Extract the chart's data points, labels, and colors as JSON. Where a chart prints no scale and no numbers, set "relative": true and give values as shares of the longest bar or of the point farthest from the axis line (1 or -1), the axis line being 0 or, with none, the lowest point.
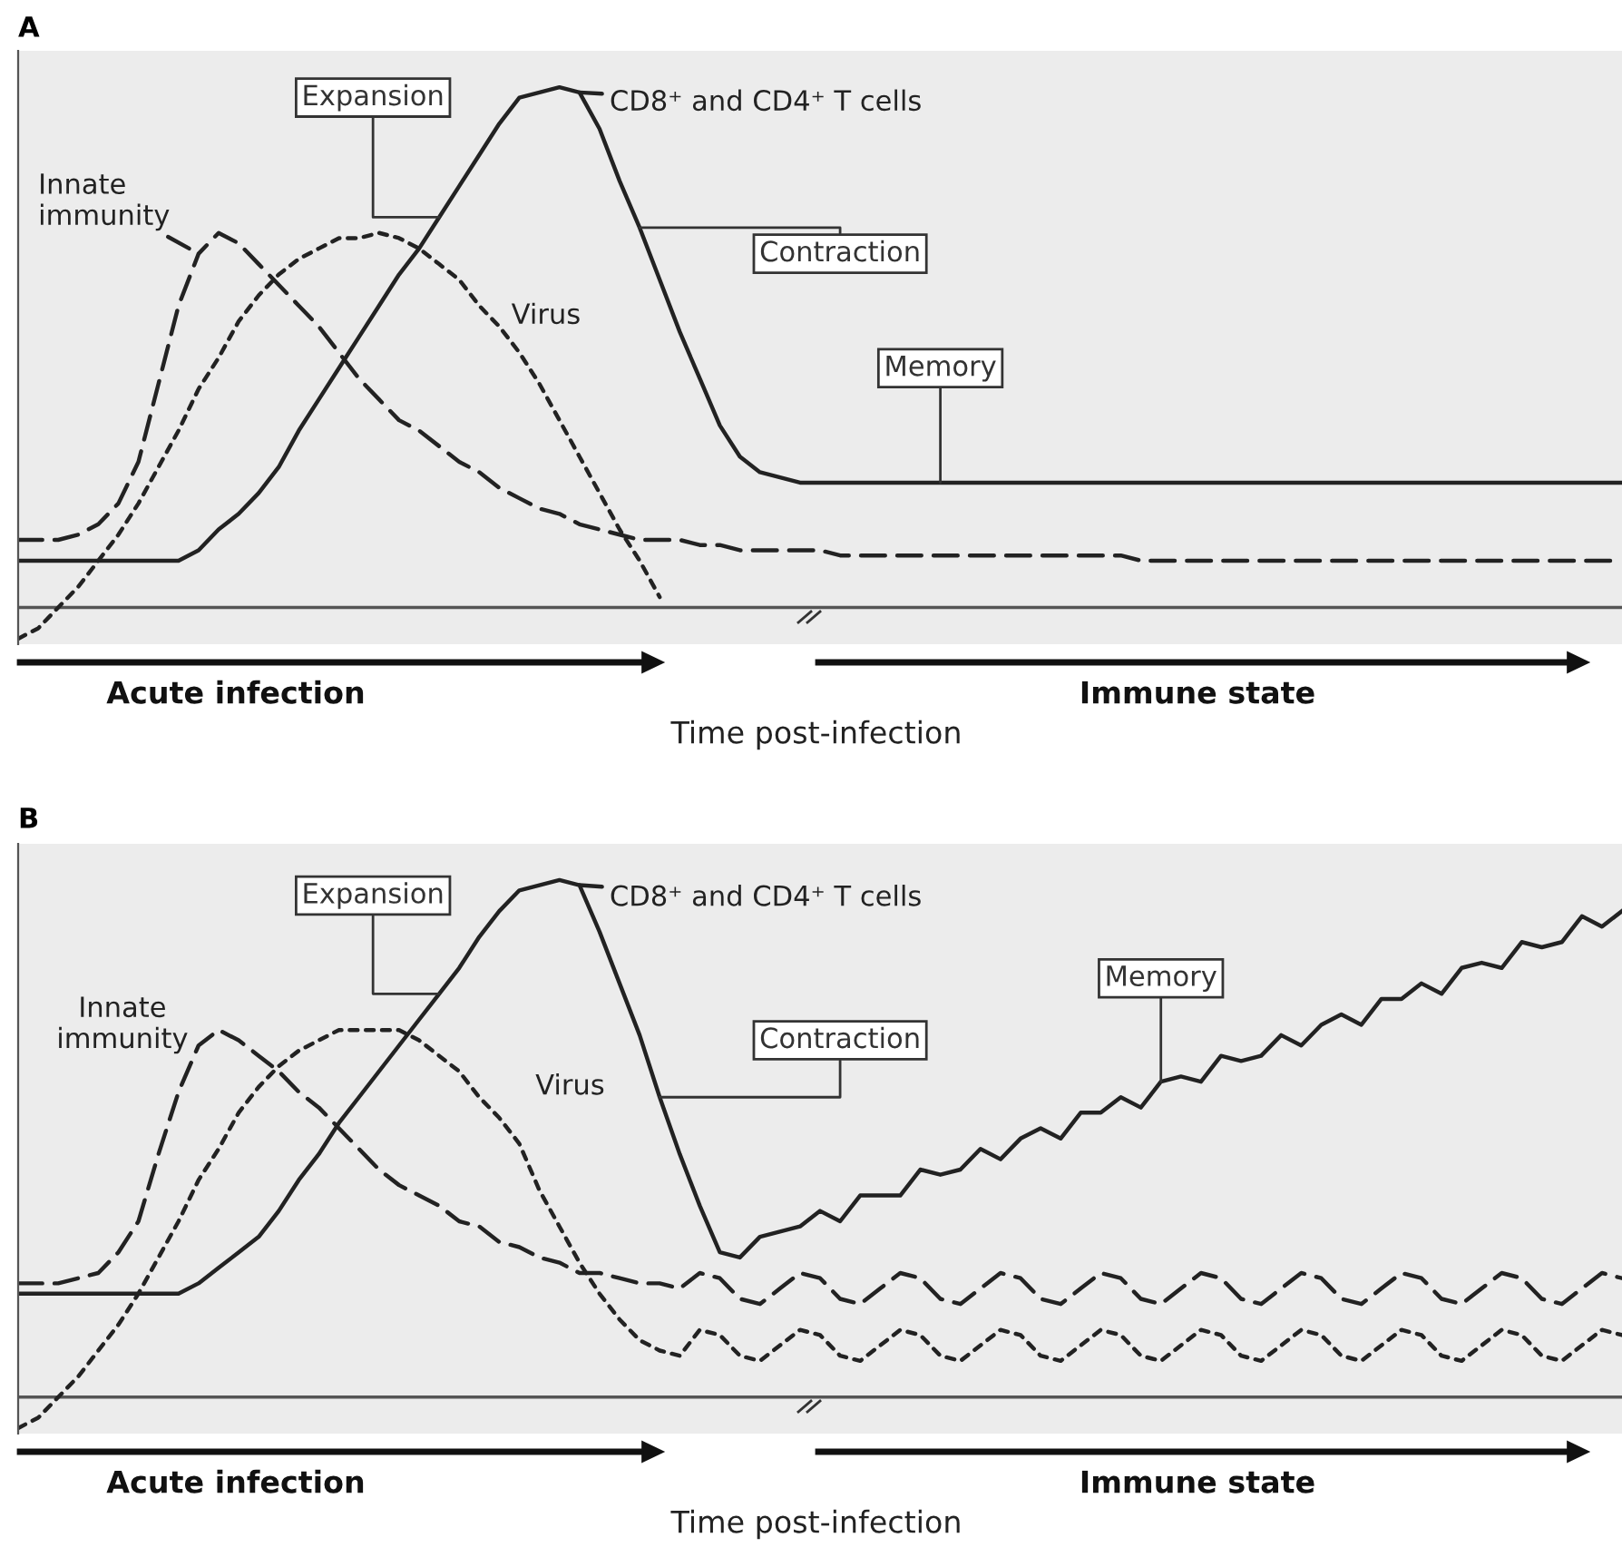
{
  "chart_data": [
    {
      "type": "line",
      "title": "A",
      "xlabel": "Time post-infection",
      "relative": true,
      "categories": [
        null,
        null,
        null,
        null,
        null,
        null,
        null,
        null,
        null,
        null,
        null,
        null,
        null,
        null,
        null,
        null,
        null,
        null,
        null,
        null,
        null,
        null,
        null,
        null,
        null,
        null,
        null,
        null,
        null,
        null,
        null,
        null,
        null,
        null,
        null,
        null,
        null,
        null,
        null,
        null,
        null,
        null,
        null,
        null,
        null,
        null,
        null,
        null,
        null,
        null,
        null,
        null,
        null,
        null,
        null,
        null,
        null,
        null,
        null,
        null,
        null,
        null,
        null,
        null,
        null,
        null,
        null,
        null,
        null,
        null,
        null,
        null,
        null,
        null,
        null,
        null,
        null,
        null,
        null,
        null,
        null
      ],
      "series": [
        {
          "name": "CD8⁺ and CD4⁺ T cells",
          "color": "#222222",
          "line_style": "solid",
          "values": [
            0.09,
            0.09,
            0.09,
            0.09,
            0.09,
            0.09,
            0.09,
            0.09,
            0.09,
            0.11,
            0.15,
            0.18,
            0.22,
            0.27,
            0.34,
            0.4,
            0.46,
            0.52,
            0.58,
            0.64,
            0.69,
            0.75,
            0.81,
            0.87,
            0.93,
            0.98,
            0.99,
            1.0,
            0.99,
            0.92,
            0.82,
            0.73,
            0.63,
            0.53,
            0.44,
            0.35,
            0.29,
            0.26,
            0.25,
            0.24,
            0.24,
            0.24,
            0.24,
            0.24,
            0.24,
            0.24,
            0.24,
            0.24,
            0.24,
            0.24,
            0.24,
            0.24,
            0.24,
            0.24,
            0.24,
            0.24,
            0.24,
            0.24,
            0.24,
            0.24,
            0.24,
            0.24,
            0.24,
            0.24,
            0.24,
            0.24,
            0.24,
            0.24,
            0.24,
            0.24,
            0.24,
            0.24,
            0.24,
            0.24,
            0.24,
            0.24,
            0.24,
            0.24,
            0.24,
            0.24,
            0.24
          ]
        },
        {
          "name": "Innate immunity",
          "color": "#222222",
          "line_style": "dashed",
          "values": [
            0.13,
            0.13,
            0.13,
            0.14,
            0.16,
            0.2,
            0.28,
            0.43,
            0.58,
            0.68,
            0.72,
            0.7,
            0.66,
            0.62,
            0.58,
            0.54,
            0.49,
            0.44,
            0.4,
            0.36,
            0.34,
            0.31,
            0.28,
            0.26,
            0.23,
            0.21,
            0.19,
            0.18,
            0.16,
            0.15,
            0.14,
            0.13,
            0.13,
            0.13,
            0.12,
            0.12,
            0.11,
            0.11,
            0.11,
            0.11,
            0.11,
            0.1,
            0.1,
            0.1,
            0.1,
            0.1,
            0.1,
            0.1,
            0.1,
            0.1,
            0.1,
            0.1,
            0.1,
            0.1,
            0.1,
            0.1,
            0.09,
            0.09,
            0.09,
            0.09,
            0.09,
            0.09,
            0.09,
            0.09,
            0.09,
            0.09,
            0.09,
            0.09,
            0.09,
            0.09,
            0.09,
            0.09,
            0.09,
            0.09,
            0.09,
            0.09,
            0.09,
            0.09,
            0.09,
            0.09,
            0.09
          ]
        },
        {
          "name": "Virus",
          "color": "#222222",
          "line_style": "dotted",
          "values": [
            -0.06,
            -0.04,
            0.0,
            0.04,
            0.09,
            0.14,
            0.2,
            0.27,
            0.34,
            0.42,
            0.48,
            0.55,
            0.6,
            0.64,
            0.67,
            0.69,
            0.71,
            0.71,
            0.72,
            0.71,
            0.69,
            0.66,
            0.63,
            0.58,
            0.54,
            0.49,
            0.43,
            0.36,
            0.29,
            0.22,
            0.15,
            0.09,
            0.02,
            null,
            null,
            null,
            null,
            null,
            null,
            null,
            null,
            null,
            null,
            null,
            null,
            null,
            null,
            null,
            null,
            null,
            null,
            null,
            null,
            null,
            null,
            null,
            null,
            null,
            null,
            null,
            null,
            null,
            null,
            null,
            null,
            null,
            null,
            null,
            null,
            null,
            null,
            null,
            null,
            null,
            null,
            null,
            null,
            null,
            null,
            null,
            null
          ]
        }
      ],
      "annotations": [
        "Expansion",
        "Contraction",
        "Memory",
        "Acute infection",
        "Immune state"
      ]
    },
    {
      "type": "line",
      "title": "B",
      "xlabel": "Time post-infection",
      "relative": true,
      "categories": [
        null,
        null,
        null,
        null,
        null,
        null,
        null,
        null,
        null,
        null,
        null,
        null,
        null,
        null,
        null,
        null,
        null,
        null,
        null,
        null,
        null,
        null,
        null,
        null,
        null,
        null,
        null,
        null,
        null,
        null,
        null,
        null,
        null,
        null,
        null,
        null,
        null,
        null,
        null,
        null,
        null,
        null,
        null,
        null,
        null,
        null,
        null,
        null,
        null,
        null,
        null,
        null,
        null,
        null,
        null,
        null,
        null,
        null,
        null,
        null,
        null,
        null,
        null,
        null,
        null,
        null,
        null,
        null,
        null,
        null,
        null,
        null,
        null,
        null,
        null,
        null,
        null,
        null,
        null,
        null,
        null
      ],
      "series": [
        {
          "name": "CD8⁺ and CD4⁺ T cells",
          "color": "#222222",
          "line_style": "solid",
          "values": [
            0.2,
            0.2,
            0.2,
            0.2,
            0.2,
            0.2,
            0.2,
            0.2,
            0.2,
            0.22,
            0.25,
            0.28,
            0.31,
            0.36,
            0.42,
            0.47,
            0.53,
            0.58,
            0.63,
            0.68,
            0.73,
            0.78,
            0.83,
            0.89,
            0.94,
            0.98,
            0.99,
            1.0,
            0.99,
            0.9,
            0.8,
            0.7,
            0.58,
            0.47,
            0.37,
            0.28,
            0.27,
            0.31,
            0.32,
            0.33,
            0.36,
            0.34,
            0.39,
            0.39,
            0.39,
            0.44,
            0.43,
            0.44,
            0.48,
            0.46,
            0.5,
            0.52,
            0.5,
            0.55,
            0.55,
            0.58,
            0.56,
            0.61,
            0.62,
            0.61,
            0.66,
            0.65,
            0.66,
            0.7,
            0.68,
            0.72,
            0.74,
            0.72,
            0.77,
            0.77,
            0.8,
            0.78,
            0.83,
            0.84,
            0.83,
            0.88,
            0.87,
            0.88,
            0.93,
            0.91,
            0.94
          ]
        },
        {
          "name": "Innate immunity",
          "color": "#222222",
          "line_style": "dashed",
          "values": [
            0.22,
            0.22,
            0.22,
            0.23,
            0.24,
            0.28,
            0.34,
            0.47,
            0.59,
            0.68,
            0.71,
            0.69,
            0.66,
            0.63,
            0.59,
            0.56,
            0.52,
            0.48,
            0.44,
            0.41,
            0.39,
            0.37,
            0.34,
            0.33,
            0.3,
            0.29,
            0.27,
            0.26,
            0.24,
            0.24,
            0.23,
            0.22,
            0.22,
            0.21,
            0.24,
            0.23,
            0.19,
            0.18,
            0.21,
            0.24,
            0.23,
            0.19,
            0.18,
            0.21,
            0.24,
            0.23,
            0.19,
            0.18,
            0.21,
            0.24,
            0.23,
            0.19,
            0.18,
            0.21,
            0.24,
            0.23,
            0.19,
            0.18,
            0.21,
            0.24,
            0.23,
            0.19,
            0.18,
            0.21,
            0.24,
            0.23,
            0.19,
            0.18,
            0.21,
            0.24,
            0.23,
            0.19,
            0.18,
            0.21,
            0.24,
            0.23,
            0.19,
            0.18,
            0.21,
            0.24,
            0.23
          ]
        },
        {
          "name": "Virus",
          "color": "#222222",
          "line_style": "dotted",
          "values": [
            -0.06,
            -0.04,
            0.0,
            0.04,
            0.09,
            0.14,
            0.2,
            0.27,
            0.34,
            0.42,
            0.48,
            0.55,
            0.6,
            0.64,
            0.67,
            0.69,
            0.71,
            0.71,
            0.71,
            0.71,
            0.69,
            0.66,
            0.63,
            0.58,
            0.54,
            0.49,
            0.4,
            0.33,
            0.26,
            0.2,
            0.15,
            0.11,
            0.09,
            0.08,
            0.13,
            0.12,
            0.08,
            0.07,
            0.1,
            0.13,
            0.12,
            0.08,
            0.07,
            0.1,
            0.13,
            0.12,
            0.08,
            0.07,
            0.1,
            0.13,
            0.12,
            0.08,
            0.07,
            0.1,
            0.13,
            0.12,
            0.08,
            0.07,
            0.1,
            0.13,
            0.12,
            0.08,
            0.07,
            0.1,
            0.13,
            0.12,
            0.08,
            0.07,
            0.1,
            0.13,
            0.12,
            0.08,
            0.07,
            0.1,
            0.13,
            0.12,
            0.08,
            0.07,
            0.1,
            0.13,
            0.12
          ]
        }
      ],
      "annotations": [
        "Expansion",
        "Contraction",
        "Memory",
        "Acute infection",
        "Immune state"
      ]
    }
  ]
}
